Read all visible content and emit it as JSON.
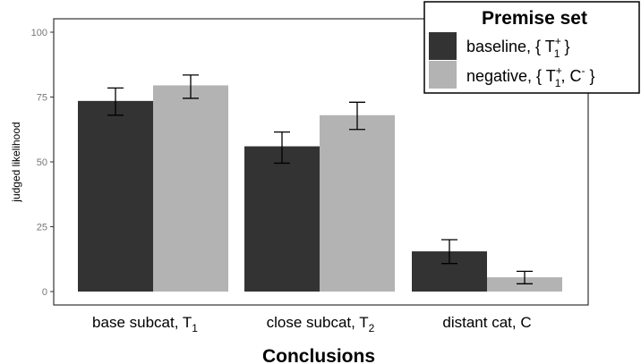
{
  "chart_data": {
    "type": "bar",
    "title": "",
    "xlabel": "Conclusions",
    "ylabel": "judged likelihood",
    "ylim": [
      0,
      100
    ],
    "yticks": [
      "0",
      "25",
      "50",
      "75",
      "100"
    ],
    "grid": false,
    "legend_position": "top-right",
    "categories": [
      {
        "main": "base subcat,  T",
        "sub": "1"
      },
      {
        "main": "close subcat,  T",
        "sub": "2"
      },
      {
        "main": "distant cat,  C",
        "sub": ""
      }
    ],
    "legend": {
      "title": "Premise set",
      "entries": [
        {
          "prefix": "baseline, { T",
          "sup": "+",
          "sub": "1",
          "suffix": " }"
        },
        {
          "prefix": "negative,  { T",
          "sup": "+",
          "sub": "1",
          "middle": ",  C",
          "sup2": "-",
          "suffix": " }"
        }
      ]
    },
    "series": [
      {
        "key": "baseline",
        "color": "#333333",
        "values": [
          73.5,
          56,
          15.5
        ],
        "err_low": [
          68,
          49.5,
          10.8
        ],
        "err_high": [
          78.5,
          61.5,
          20
        ]
      },
      {
        "key": "negative",
        "color": "#b3b3b3",
        "values": [
          79.5,
          68,
          5.5
        ],
        "err_low": [
          74.5,
          62.5,
          3
        ],
        "err_high": [
          83.5,
          73,
          7.8
        ]
      }
    ]
  }
}
